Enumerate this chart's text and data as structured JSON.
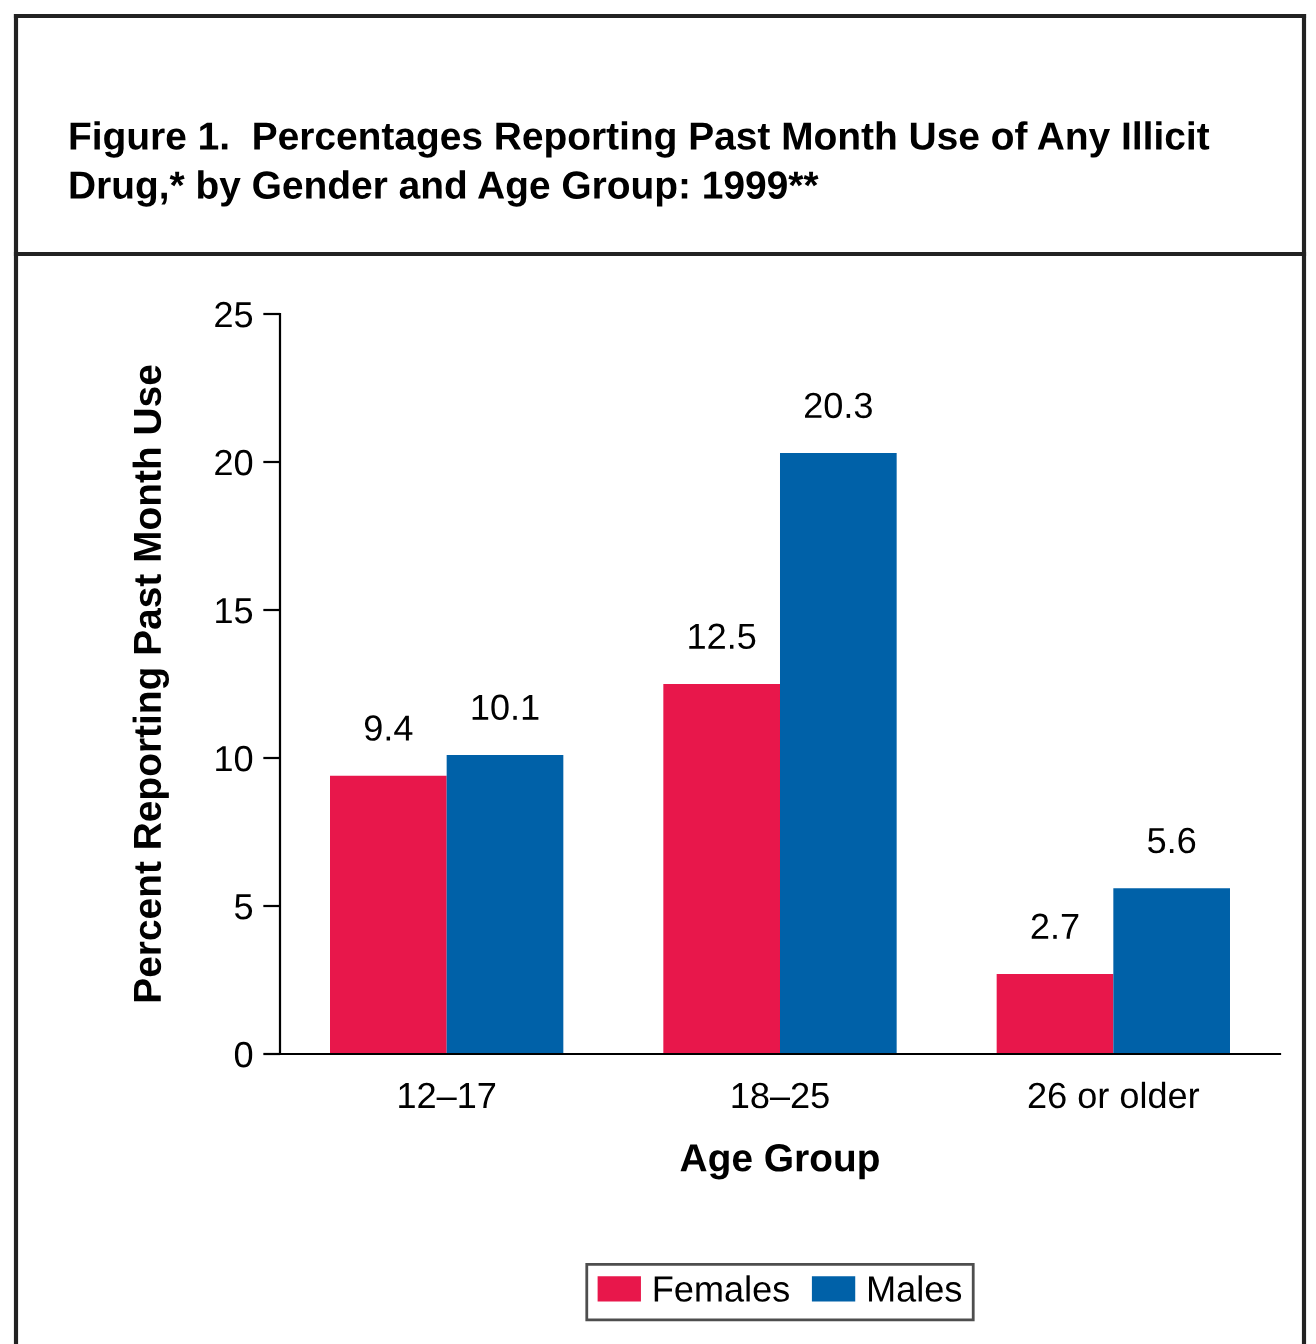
{
  "chart_data": {
    "type": "bar",
    "title": "Figure 1.  Percentages Reporting Past Month Use of Any Illicit Drug,* by Gender and Age Group: 1999**",
    "xlabel": "Age Group",
    "ylabel": "Percent Reporting Past Month Use",
    "categories": [
      "12–17",
      "18–25",
      "26 or older"
    ],
    "series": [
      {
        "name": "Females",
        "color": "#e8174b",
        "values": [
          9.4,
          12.5,
          2.7
        ]
      },
      {
        "name": "Males",
        "color": "#0061a8",
        "values": [
          10.1,
          20.3,
          5.6
        ]
      }
    ],
    "ylim": [
      0,
      25
    ],
    "yticks": [
      0,
      5,
      10,
      15,
      20,
      25
    ],
    "data_labels": true,
    "grid": false,
    "legend": "bottom"
  }
}
